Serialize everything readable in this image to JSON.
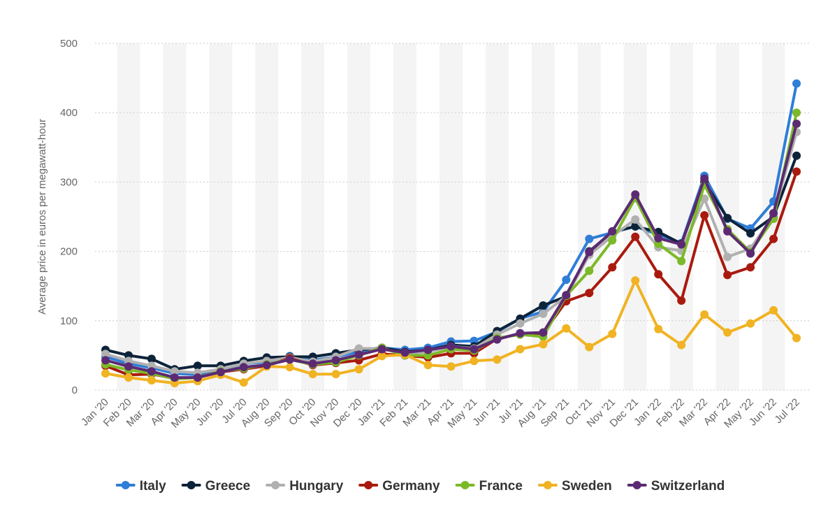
{
  "chart_data": {
    "type": "line",
    "title": "",
    "xlabel": "",
    "ylabel": "Average price in euros per megawatt-hour",
    "ylim": [
      0,
      500
    ],
    "yticks": [
      0,
      100,
      200,
      300,
      400,
      500
    ],
    "grid": true,
    "legend_position": "bottom",
    "categories": [
      "Jan '20",
      "Feb '20",
      "Mar '20",
      "Apr '20",
      "May '20",
      "Jun '20",
      "Jul '20",
      "Aug '20",
      "Sep '20",
      "Oct '20",
      "Nov '20",
      "Dec '20",
      "Jan '21",
      "Feb '21",
      "Mar '21",
      "Apr '21",
      "May '21",
      "Jun '21",
      "Jul '21",
      "Aug '21",
      "Sep '21",
      "Oct '21",
      "Nov '21",
      "Dec '21",
      "Jan '22",
      "Feb '22",
      "Mar '22",
      "Apr '22",
      "May '22",
      "Jun '22",
      "Jul '22"
    ],
    "series": [
      {
        "name": "Italy",
        "color": "#2f7ed8",
        "values": [
          48,
          38,
          32,
          24,
          22,
          28,
          38,
          40,
          49,
          43,
          48,
          55,
          61,
          58,
          61,
          70,
          71,
          84,
          103,
          113,
          159,
          218,
          227,
          236,
          224,
          212,
          309,
          247,
          233,
          272,
          442
        ]
      },
      {
        "name": "Greece",
        "color": "#0d233a",
        "values": [
          58,
          50,
          45,
          30,
          35,
          35,
          42,
          47,
          48,
          48,
          53,
          58,
          61,
          55,
          58,
          65,
          63,
          85,
          103,
          122,
          135,
          200,
          228,
          236,
          228,
          211,
          300,
          248,
          226,
          250,
          338
        ]
      },
      {
        "name": "Hungary",
        "color": "#b0b0b0",
        "values": [
          52,
          42,
          35,
          27,
          25,
          30,
          38,
          42,
          47,
          41,
          48,
          60,
          60,
          52,
          55,
          63,
          60,
          80,
          96,
          110,
          135,
          195,
          222,
          246,
          206,
          201,
          276,
          192,
          204,
          252,
          372
        ]
      },
      {
        "name": "Germany",
        "color": "#a91a0e",
        "values": [
          35,
          22,
          23,
          17,
          18,
          26,
          30,
          35,
          46,
          36,
          39,
          43,
          52,
          50,
          47,
          53,
          53,
          74,
          81,
          82,
          128,
          140,
          177,
          221,
          167,
          129,
          252,
          166,
          177,
          218,
          315
        ]
      },
      {
        "name": "France",
        "color": "#7cb928",
        "values": [
          37,
          29,
          24,
          16,
          18,
          27,
          31,
          37,
          44,
          37,
          40,
          50,
          61,
          50,
          50,
          59,
          57,
          75,
          80,
          77,
          136,
          172,
          216,
          277,
          211,
          186,
          296,
          232,
          199,
          247,
          400
        ]
      },
      {
        "name": "Sweden",
        "color": "#f0b323",
        "values": [
          24,
          18,
          14,
          10,
          13,
          22,
          11,
          34,
          33,
          23,
          23,
          30,
          49,
          51,
          36,
          34,
          42,
          44,
          59,
          66,
          89,
          62,
          81,
          158,
          88,
          65,
          109,
          83,
          96,
          115,
          75
        ]
      },
      {
        "name": "Switzerland",
        "color": "#5c2a72",
        "values": [
          43,
          34,
          27,
          18,
          18,
          26,
          33,
          36,
          44,
          38,
          43,
          51,
          59,
          54,
          58,
          63,
          59,
          73,
          82,
          83,
          137,
          199,
          229,
          282,
          219,
          210,
          305,
          229,
          197,
          255,
          384
        ]
      }
    ]
  }
}
